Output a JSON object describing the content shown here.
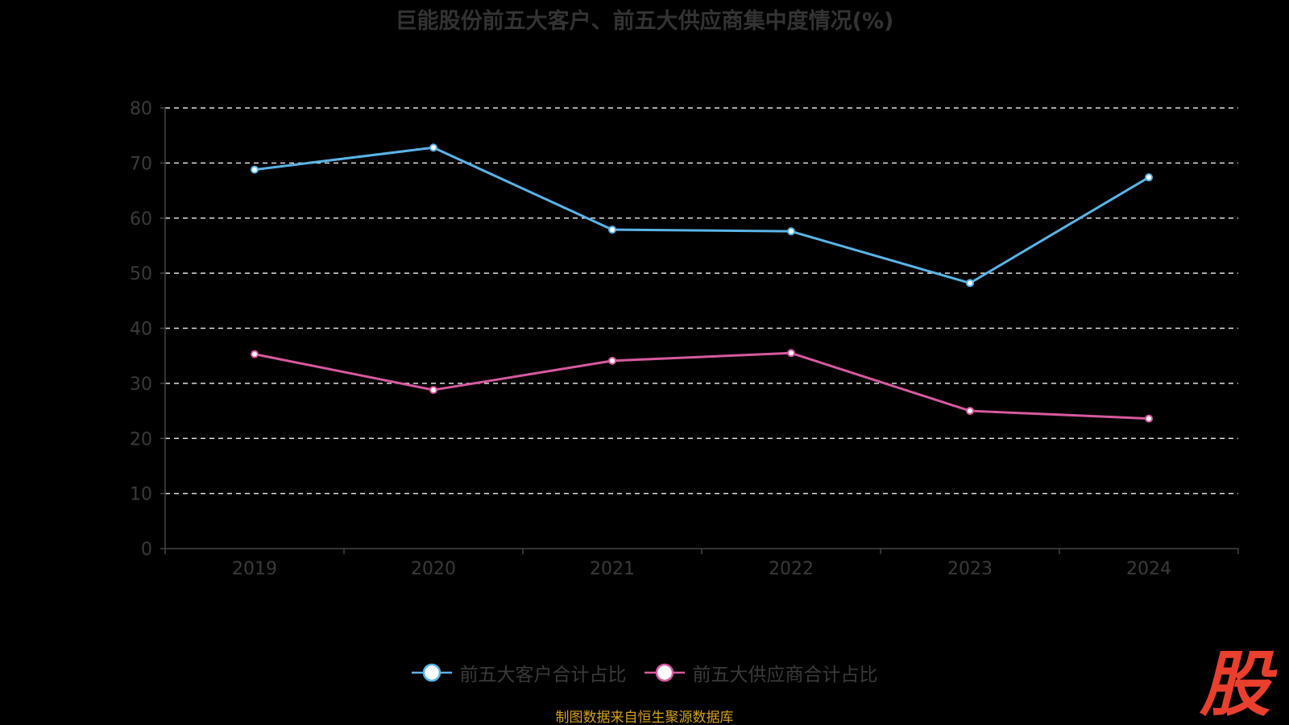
{
  "title": "巨能股份前五大客户、前五大供应商集中度情况(%)",
  "source_note": "制图数据来自恒生聚源数据库",
  "watermark_text": "股",
  "colors": {
    "background": "#000000",
    "axis": "#444444",
    "grid": "#dddddd",
    "tick_label": "#3a3a3a",
    "watermark": "#e8402d"
  },
  "chart_data": {
    "type": "line",
    "title": "巨能股份前五大客户、前五大供应商集中度情况(%)",
    "xlabel": "",
    "ylabel": "",
    "categories": [
      "2019",
      "2020",
      "2021",
      "2022",
      "2023",
      "2024"
    ],
    "ylim": [
      0,
      80
    ],
    "yticks": [
      0,
      10,
      20,
      30,
      40,
      50,
      60,
      70,
      80
    ],
    "grid": true,
    "legend_position": "bottom",
    "series": [
      {
        "name": "前五大客户合计占比",
        "color": "#5ab4e8",
        "values": [
          68.8,
          72.8,
          57.9,
          57.6,
          48.2,
          67.4
        ]
      },
      {
        "name": "前五大供应商合计占比",
        "color": "#d75aa0",
        "values": [
          35.3,
          28.8,
          34.1,
          35.5,
          25.0,
          23.6
        ]
      }
    ]
  }
}
